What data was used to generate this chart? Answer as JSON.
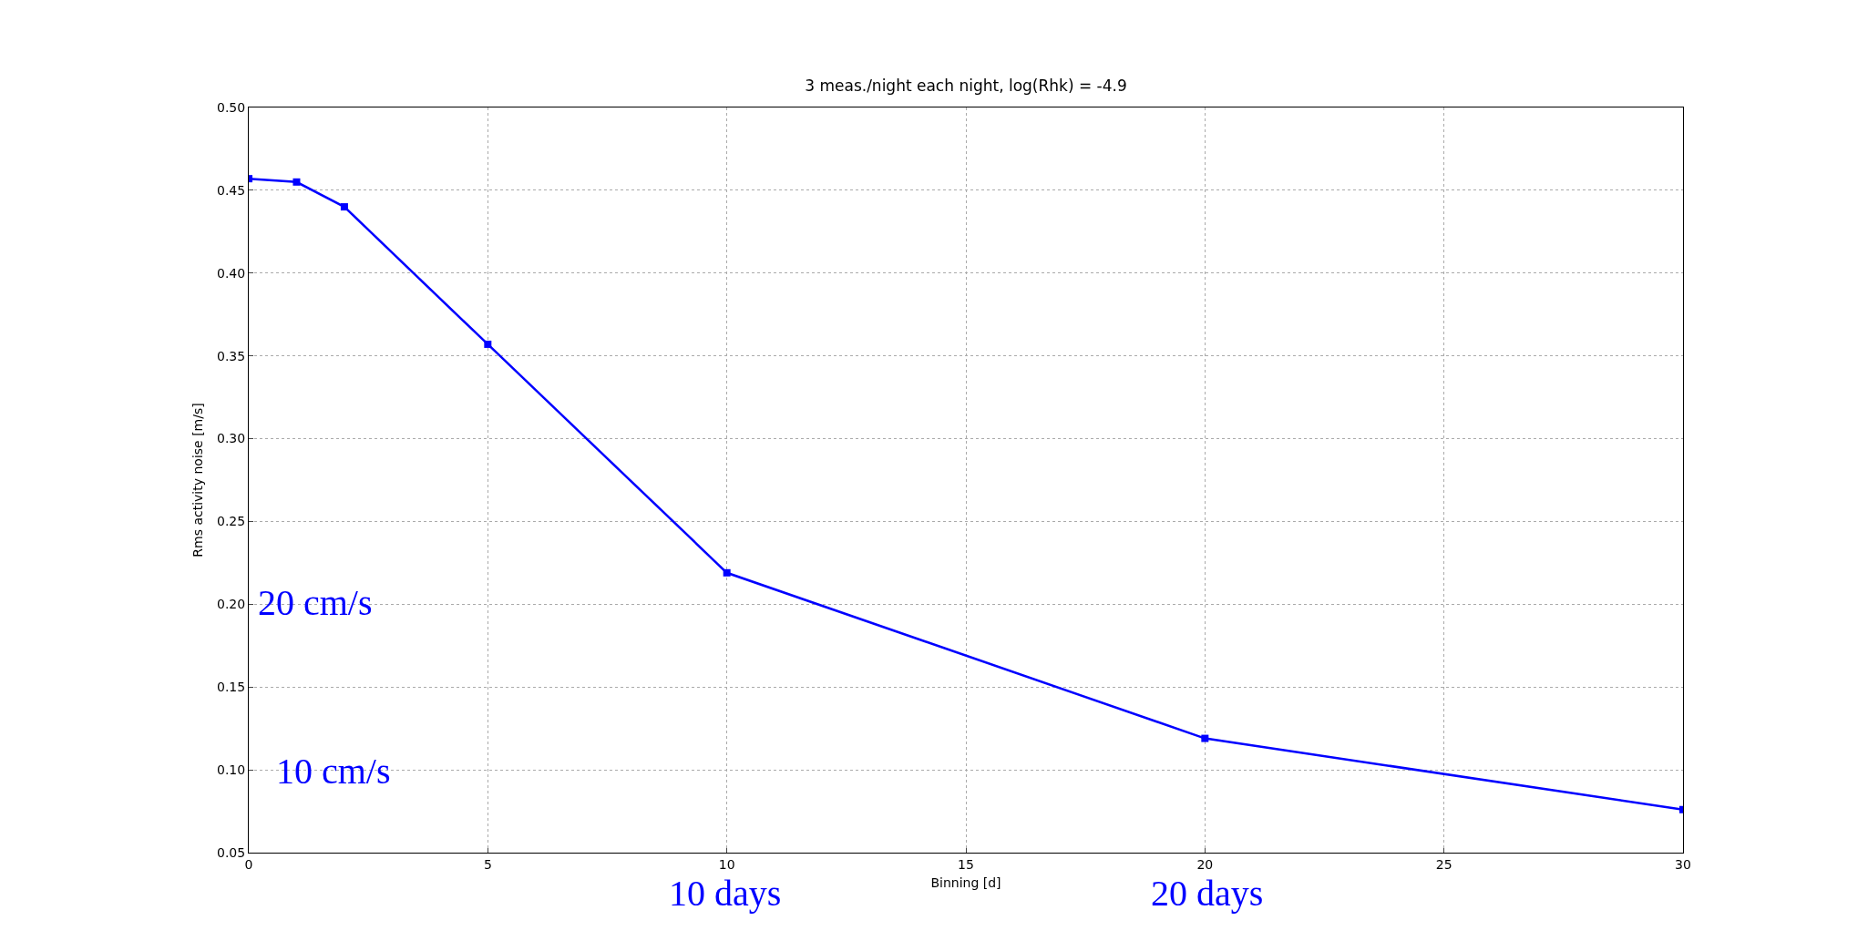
{
  "chart_data": {
    "type": "line",
    "title": "3 meas./night each night, log(Rhk) = -4.9",
    "xlabel": "Binning [d]",
    "ylabel": "Rms activity noise [m/s]",
    "x": [
      0,
      1,
      2,
      5,
      10,
      20,
      30
    ],
    "series": [
      {
        "color": "#0000ff",
        "values": [
          0.457,
          0.455,
          0.44,
          0.357,
          0.219,
          0.119,
          0.076
        ]
      }
    ],
    "xlim": [
      0,
      30
    ],
    "xticks": [
      0,
      5,
      10,
      15,
      20,
      25,
      30
    ],
    "ylim": [
      0.05,
      0.5
    ],
    "yticks": [
      {
        "value": 0.05,
        "label": "0.05"
      },
      {
        "value": 0.1,
        "label": "0.10"
      },
      {
        "value": 0.15,
        "label": "0.15"
      },
      {
        "value": 0.2,
        "label": "0.20"
      },
      {
        "value": 0.25,
        "label": "0.25"
      },
      {
        "value": 0.3,
        "label": "0.30"
      },
      {
        "value": 0.35,
        "label": "0.35"
      },
      {
        "value": 0.4,
        "label": "0.40"
      },
      {
        "value": 0.45,
        "label": "0.45"
      },
      {
        "value": 0.5,
        "label": "0.50"
      }
    ],
    "grid": true,
    "marker": "square",
    "line_style": "solid",
    "annotations": [
      "20 cm/s",
      "10 cm/s",
      "10 days",
      "20 days"
    ]
  }
}
